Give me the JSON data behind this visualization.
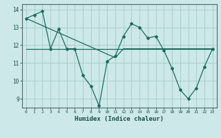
{
  "xlabel": "Humidex (Indice chaleur)",
  "background_color": "#cce8e8",
  "grid_color": "#aacece",
  "line_color": "#1a6b60",
  "x_data": [
    0,
    1,
    2,
    3,
    4,
    5,
    6,
    7,
    8,
    9,
    10,
    11,
    12,
    13,
    14,
    15,
    16,
    17,
    18,
    19,
    20,
    21,
    22,
    23
  ],
  "y_zigzag": [
    13.5,
    13.7,
    13.9,
    11.8,
    12.9,
    11.8,
    11.8,
    10.3,
    9.7,
    8.6,
    11.1,
    11.4,
    12.5,
    13.2,
    13.0,
    12.4,
    12.5,
    11.7,
    10.7,
    9.5,
    9.0,
    9.6,
    10.8,
    11.8
  ],
  "y_trend": [
    13.5,
    13.3,
    13.1,
    12.9,
    12.7,
    12.5,
    12.3,
    12.1,
    11.9,
    11.7,
    11.5,
    11.3,
    11.8,
    11.8,
    11.8,
    11.8,
    11.8,
    11.8,
    11.8,
    11.8,
    11.8,
    11.8,
    11.8,
    11.8
  ],
  "y_flat": [
    11.8,
    11.8,
    11.8,
    11.8,
    11.8,
    11.8,
    11.8,
    11.8,
    11.8,
    11.8,
    11.8,
    11.8,
    11.8,
    11.8,
    11.8,
    11.8,
    11.8,
    11.8,
    11.8,
    11.8,
    11.8,
    11.8,
    11.8,
    11.8
  ],
  "xlim": [
    -0.5,
    23.5
  ],
  "ylim": [
    8.5,
    14.3
  ],
  "yticks": [
    9,
    10,
    11,
    12,
    13,
    14
  ],
  "xticks": [
    0,
    1,
    2,
    3,
    4,
    5,
    6,
    7,
    8,
    9,
    10,
    11,
    12,
    13,
    14,
    15,
    16,
    17,
    18,
    19,
    20,
    21,
    22,
    23
  ]
}
